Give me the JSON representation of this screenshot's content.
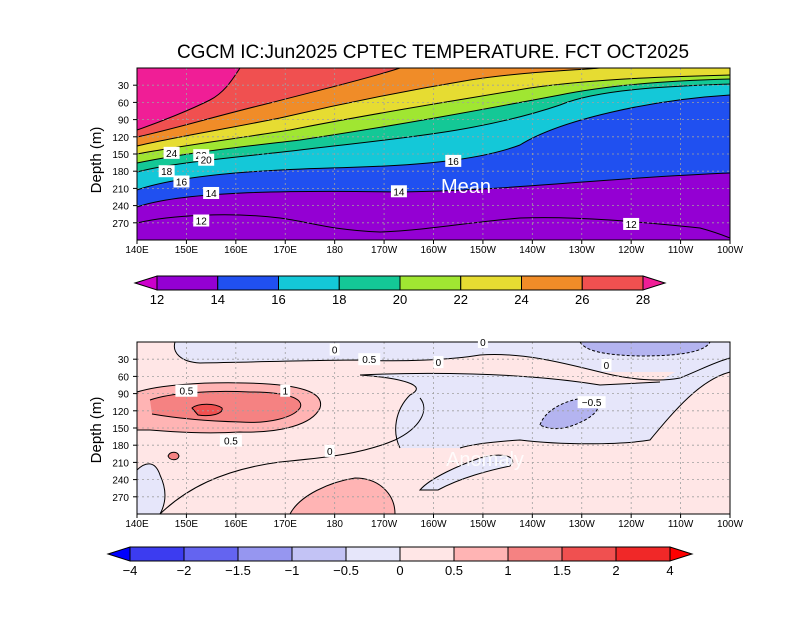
{
  "title": "CGCM IC:Jun2025 CPTEC TEMPERATURE. FCT OCT2025",
  "chart_data": [
    {
      "type": "heatmap",
      "panel": "mean",
      "label": "Mean",
      "ylabel": "Depth (m)",
      "x_ticks": [
        "140E",
        "150E",
        "160E",
        "170E",
        "180",
        "170W",
        "160W",
        "150W",
        "140W",
        "130W",
        "120W",
        "110W",
        "100W"
      ],
      "y_ticks": [
        "30",
        "60",
        "90",
        "120",
        "150",
        "180",
        "210",
        "240",
        "270"
      ],
      "xlim": [
        140,
        260
      ],
      "ylim": [
        0,
        300
      ],
      "colorbar": {
        "levels": [
          "12",
          "14",
          "16",
          "18",
          "20",
          "22",
          "24",
          "26",
          "28"
        ],
        "colors": [
          "#cc00cc",
          "#9400d3",
          "#2050f0",
          "#14c8d8",
          "#14c896",
          "#a0e632",
          "#e6dc32",
          "#f08c28",
          "#f05050",
          "#f01e96"
        ]
      },
      "contour_labels": [
        {
          "text": "24",
          "lon": 147,
          "depth": 148
        },
        {
          "text": "22",
          "lon": 153,
          "depth": 152
        },
        {
          "text": "20",
          "lon": 154,
          "depth": 160
        },
        {
          "text": "18",
          "lon": 146,
          "depth": 180
        },
        {
          "text": "16",
          "lon": 149,
          "depth": 198
        },
        {
          "text": "14",
          "lon": 155,
          "depth": 218
        },
        {
          "text": "14",
          "lon": 193,
          "depth": 215
        },
        {
          "text": "16",
          "lon": 204,
          "depth": 162
        },
        {
          "text": "12",
          "lon": 153,
          "depth": 266
        },
        {
          "text": "12",
          "lon": 240,
          "depth": 272
        }
      ]
    },
    {
      "type": "heatmap",
      "panel": "anomaly",
      "label": "Anomaly",
      "ylabel": "Depth (m)",
      "x_ticks": [
        "140E",
        "150E",
        "160E",
        "170E",
        "180",
        "170W",
        "160W",
        "150W",
        "140W",
        "130W",
        "120W",
        "110W",
        "100W"
      ],
      "y_ticks": [
        "30",
        "60",
        "90",
        "120",
        "150",
        "180",
        "210",
        "240",
        "270"
      ],
      "xlim": [
        140,
        260
      ],
      "ylim": [
        0,
        300
      ],
      "colorbar": {
        "levels": [
          "−4",
          "−2",
          "−1.5",
          "−1",
          "−0.5",
          "0",
          "0.5",
          "1",
          "1.5",
          "2",
          "4"
        ],
        "colors": [
          "#0000ff",
          "#3c3cf0",
          "#6464f0",
          "#9696f0",
          "#c3c3f5",
          "#e6e6fa",
          "#ffe6e6",
          "#ffb4b4",
          "#f58282",
          "#f05050",
          "#f02828",
          "#ff0000"
        ]
      },
      "contour_labels": [
        {
          "text": "0",
          "lon": 180,
          "depth": 13
        },
        {
          "text": "0",
          "lon": 210,
          "depth": 0
        },
        {
          "text": "0.5",
          "lon": 187,
          "depth": 30
        },
        {
          "text": "0",
          "lon": 201,
          "depth": 35
        },
        {
          "text": "0",
          "lon": 235,
          "depth": 40
        },
        {
          "text": "0.5",
          "lon": 150,
          "depth": 85
        },
        {
          "text": "1",
          "lon": 170,
          "depth": 85
        },
        {
          "text": "−0.5",
          "lon": 232,
          "depth": 105
        },
        {
          "text": "0.5",
          "lon": 159,
          "depth": 172
        },
        {
          "text": "0",
          "lon": 179,
          "depth": 190
        }
      ]
    }
  ]
}
